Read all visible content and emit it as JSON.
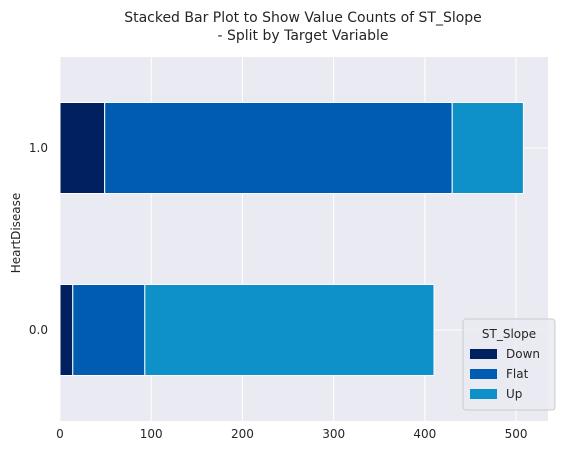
{
  "chart_data": {
    "type": "bar",
    "orientation": "horizontal",
    "stacked": true,
    "title_line1": "Stacked Bar Plot to Show Value Counts of ST_Slope",
    "title_line2": "- Split by Target Variable",
    "xlabel": "",
    "ylabel": "HeartDisease",
    "categories": [
      "0.0",
      "1.0"
    ],
    "series": [
      {
        "name": "Down",
        "values": [
          14,
          49
        ],
        "color": "#002060"
      },
      {
        "name": "Flat",
        "values": [
          79,
          381
        ],
        "color": "#005cb0"
      },
      {
        "name": "Up",
        "values": [
          317,
          78
        ],
        "color": "#0e90c8"
      }
    ],
    "xlim": [
      0,
      535
    ],
    "xticks": [
      0,
      100,
      200,
      300,
      400,
      500
    ],
    "grid": true,
    "legend_title": "ST_Slope",
    "legend_position": "lower right",
    "background_color": "#eaeaf2",
    "grid_color": "#ffffff"
  }
}
